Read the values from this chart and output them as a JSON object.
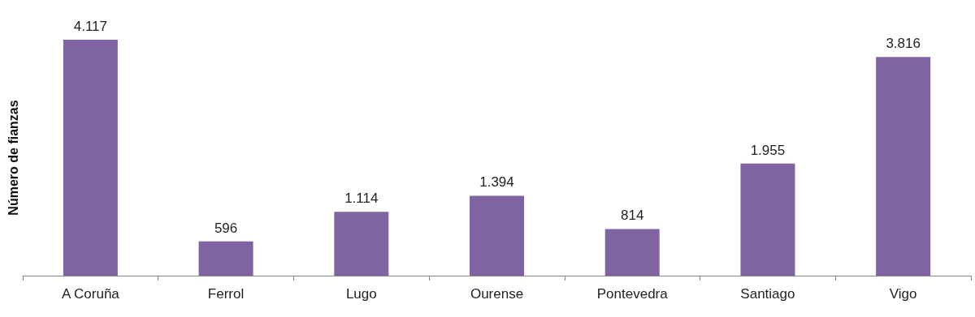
{
  "chart_data": {
    "type": "bar",
    "ylabel": "Número de fianzas",
    "categories": [
      "A Coruña",
      "Ferrol",
      "Lugo",
      "Ourense",
      "Pontevedra",
      "Santiago",
      "Vigo"
    ],
    "values": [
      4117,
      596,
      1114,
      1394,
      814,
      1955,
      3816
    ],
    "value_labels": [
      "4.117",
      "596",
      "1.114",
      "1.394",
      "814",
      "1.955",
      "3.816"
    ],
    "color": "#8064a2"
  }
}
